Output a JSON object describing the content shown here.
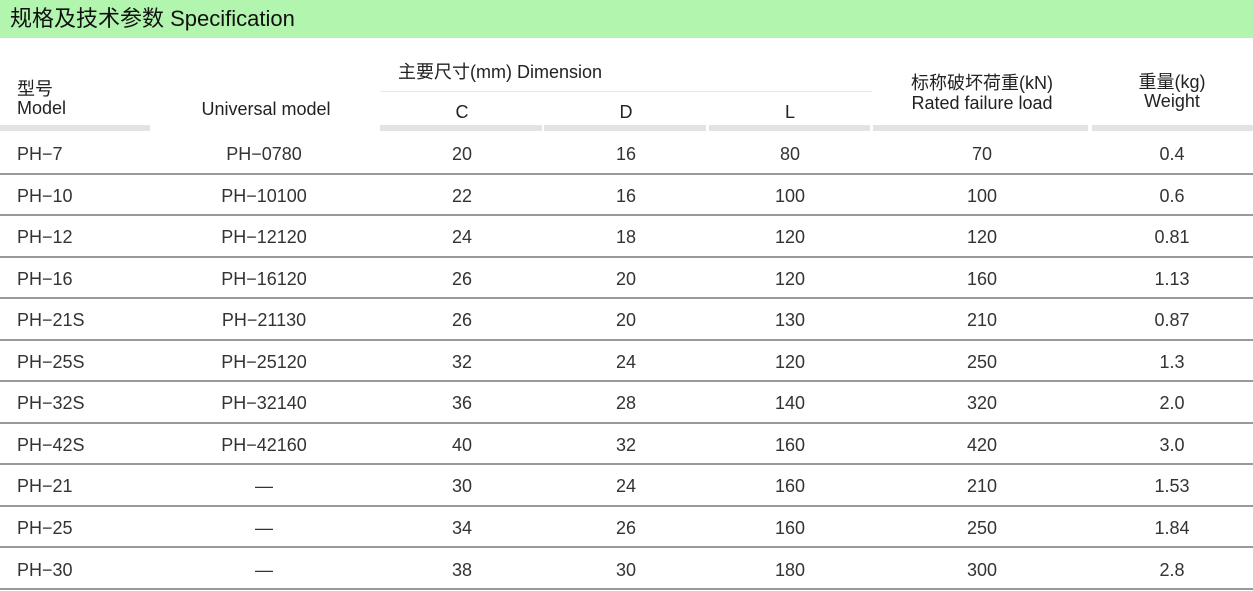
{
  "title": "规格及技术参数  Specification",
  "colors": {
    "banner": "#b2f5ae",
    "header_bar": "#e3e3e3",
    "row_line": "#999999"
  },
  "headers": {
    "model_cn": "型号",
    "model_en": "Model",
    "universal": "Universal  model",
    "dimension": "主要尺寸(mm)  Dimension",
    "c": "C",
    "d": "D",
    "l": "L",
    "load_cn": "标称破坏荷重(kN)",
    "load_en": "Rated failure load",
    "weight_cn": "重量(kg)",
    "weight_en": "Weight"
  },
  "rows": [
    [
      "PH−7",
      "PH−0780",
      "20",
      "16",
      "80",
      "70",
      "0.4"
    ],
    [
      "PH−10",
      "PH−10100",
      "22",
      "16",
      "100",
      "100",
      "0.6"
    ],
    [
      "PH−12",
      "PH−12120",
      "24",
      "18",
      "120",
      "120",
      "0.81"
    ],
    [
      "PH−16",
      "PH−16120",
      "26",
      "20",
      "120",
      "160",
      "1.13"
    ],
    [
      "PH−21S",
      "PH−21130",
      "26",
      "20",
      "130",
      "210",
      "0.87"
    ],
    [
      "PH−25S",
      "PH−25120",
      "32",
      "24",
      "120",
      "250",
      "1.3"
    ],
    [
      "PH−32S",
      "PH−32140",
      "36",
      "28",
      "140",
      "320",
      "2.0"
    ],
    [
      "PH−42S",
      "PH−42160",
      "40",
      "32",
      "160",
      "420",
      "3.0"
    ],
    [
      "PH−21",
      "—",
      "30",
      "24",
      "160",
      "210",
      "1.53"
    ],
    [
      "PH−25",
      "—",
      "34",
      "26",
      "160",
      "250",
      "1.84"
    ],
    [
      "PH−30",
      "—",
      "38",
      "30",
      "180",
      "300",
      "2.8"
    ]
  ]
}
